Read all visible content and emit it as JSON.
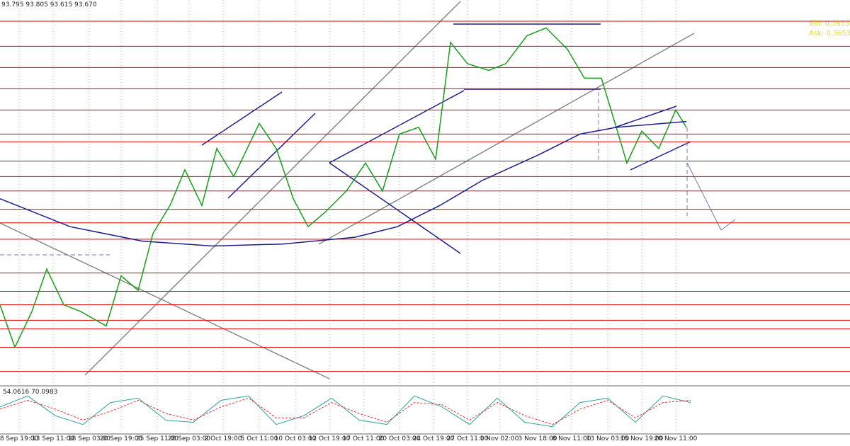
{
  "header": "93.795 93.805 93.615 93.670",
  "chart_data": [
    {
      "type": "line",
      "quote": [
        "Bid: 0.3653",
        "Ask: 0.3653"
      ],
      "quote_color": "#e6e600",
      "xlim": [
        0,
        400
      ],
      "ylim": [
        91.0,
        95.0
      ],
      "xticks": [
        {
          "value": 9,
          "label": "8 Sep 19:00"
        },
        {
          "value": 25,
          "label": "13 Sep 11:00"
        },
        {
          "value": 42,
          "label": "18 Sep 03:00"
        },
        {
          "value": 57,
          "label": "20 Sep 19:00"
        },
        {
          "value": 74,
          "label": "25 Sep 11:00"
        },
        {
          "value": 89,
          "label": "28 Sep 03:00"
        },
        {
          "value": 105,
          "label": "2 Oct 19:00"
        },
        {
          "value": 122,
          "label": "5 Oct 11:00"
        },
        {
          "value": 139,
          "label": "10 Oct 03:00"
        },
        {
          "value": 155,
          "label": "12 Oct 19:00"
        },
        {
          "value": 171,
          "label": "17 Oct 11:00"
        },
        {
          "value": 188,
          "label": "20 Oct 03:00"
        },
        {
          "value": 204,
          "label": "24 Oct 19:00"
        },
        {
          "value": 220,
          "label": "27 Oct 11:00"
        },
        {
          "value": 235,
          "label": "1 Nov 02:00"
        },
        {
          "value": 253,
          "label": "3 Nov 18:00"
        },
        {
          "value": 269,
          "label": "8 Nov 11:00"
        },
        {
          "value": 286,
          "label": "13 Nov 03:00"
        },
        {
          "value": 302,
          "label": "15 Nov 19:00"
        },
        {
          "value": 318,
          "label": "20 Nov 11:00"
        }
      ],
      "levels": [
        94.78,
        94.52,
        94.3,
        94.08,
        93.86,
        93.61,
        93.53,
        93.33,
        93.17,
        93.02,
        92.83,
        92.69,
        92.52,
        92.17,
        91.98,
        91.84,
        91.68,
        91.59,
        91.4,
        91.15
      ],
      "level_color": "#e00000",
      "series": [
        {
          "color": "#1a9e1a",
          "x": [
            0,
            7,
            15,
            22,
            30,
            38,
            50,
            57,
            65,
            72,
            80,
            87,
            95,
            102,
            110,
            122,
            130,
            138,
            145,
            153,
            163,
            172,
            180,
            188,
            197,
            205,
            212,
            220,
            230,
            238,
            248,
            257,
            267,
            275,
            283,
            290,
            295,
            302,
            310,
            318,
            323
          ],
          "values": [
            91.84,
            91.4,
            91.77,
            92.21,
            91.84,
            91.77,
            91.62,
            92.14,
            91.99,
            92.58,
            92.87,
            93.24,
            92.87,
            93.46,
            93.17,
            93.72,
            93.46,
            92.94,
            92.65,
            92.8,
            93.02,
            93.31,
            93.02,
            93.61,
            93.68,
            93.35,
            94.56,
            94.34,
            94.27,
            94.34,
            94.63,
            94.71,
            94.49,
            94.19,
            94.19,
            93.68,
            93.31,
            93.64,
            93.46,
            93.86,
            93.68
          ]
        },
        {
          "color": "#1c1c8c",
          "x": [
            0,
            33,
            67,
            100,
            133,
            167,
            187,
            207,
            227,
            253,
            273,
            290,
            323
          ],
          "values": [
            92.94,
            92.65,
            92.5,
            92.45,
            92.47,
            92.54,
            92.65,
            92.87,
            93.13,
            93.39,
            93.61,
            93.68,
            93.74
          ]
        }
      ]
    },
    {
      "type": "line",
      "label": "54.0616 70.0983",
      "ylim": [
        0,
        100
      ],
      "series": [
        {
          "color": "#2aa198",
          "x": [
            0,
            13,
            26,
            39,
            52,
            65,
            78,
            91,
            104,
            117,
            130,
            143,
            156,
            169,
            182,
            195,
            208,
            221,
            234,
            247,
            260,
            273,
            286,
            299,
            312,
            325
          ],
          "values": [
            60,
            85,
            40,
            20,
            70,
            80,
            30,
            25,
            75,
            85,
            20,
            40,
            80,
            30,
            20,
            85,
            60,
            20,
            80,
            25,
            15,
            70,
            80,
            25,
            85,
            70
          ]
        },
        {
          "color": "#e03030",
          "x": [
            0,
            13,
            26,
            39,
            52,
            65,
            78,
            91,
            104,
            117,
            130,
            143,
            156,
            169,
            182,
            195,
            208,
            221,
            234,
            247,
            260,
            273,
            286,
            299,
            312,
            325
          ],
          "values": [
            55,
            75,
            55,
            30,
            50,
            75,
            45,
            30,
            60,
            80,
            35,
            35,
            70,
            45,
            25,
            70,
            65,
            30,
            70,
            40,
            20,
            55,
            75,
            35,
            70,
            75
          ]
        }
      ]
    }
  ]
}
